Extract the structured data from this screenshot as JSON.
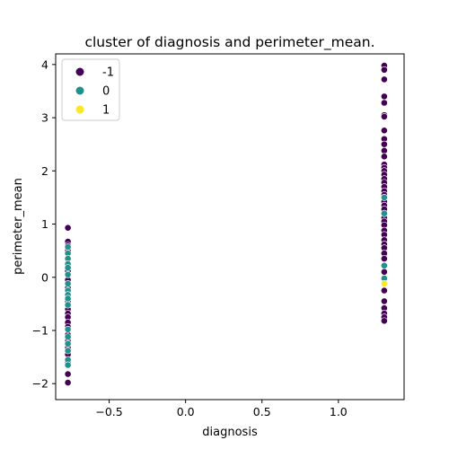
{
  "chart_data": {
    "type": "scatter",
    "title": "cluster of diagnosis and perimeter_mean.",
    "xlabel": "diagnosis",
    "ylabel": "perimeter_mean",
    "xlim": [
      -0.85,
      1.43
    ],
    "ylim": [
      -2.3,
      4.2
    ],
    "xticks": [
      -0.5,
      0.0,
      0.5,
      1.0
    ],
    "xtick_labels": [
      "−0.5",
      "0.0",
      "0.5",
      "1.0"
    ],
    "yticks": [
      -2,
      -1,
      0,
      1,
      2,
      3,
      4
    ],
    "ytick_labels": [
      "−2",
      "−1",
      "0",
      "1",
      "2",
      "3",
      "4"
    ],
    "grid": false,
    "legend_position": "top-left",
    "series": [
      {
        "name": "-1",
        "color": "#440154",
        "points": [
          [
            -0.77,
            0.93
          ],
          [
            -0.77,
            0.67
          ],
          [
            -0.77,
            0.6
          ],
          [
            -0.77,
            0.5
          ],
          [
            -0.77,
            0.12
          ],
          [
            -0.77,
            -0.05
          ],
          [
            -0.77,
            -0.2
          ],
          [
            -0.77,
            -0.45
          ],
          [
            -0.77,
            -0.6
          ],
          [
            -0.77,
            -0.68
          ],
          [
            -0.77,
            -0.75
          ],
          [
            -0.77,
            -0.85
          ],
          [
            -0.77,
            -0.93
          ],
          [
            -0.77,
            -1.08
          ],
          [
            -0.77,
            -1.2
          ],
          [
            -0.77,
            -1.32
          ],
          [
            -0.77,
            -1.45
          ],
          [
            -0.77,
            -1.6
          ],
          [
            -0.77,
            -1.82
          ],
          [
            -0.77,
            -1.98
          ],
          [
            1.3,
            3.98
          ],
          [
            1.3,
            3.9
          ],
          [
            1.3,
            3.72
          ],
          [
            1.3,
            3.4
          ],
          [
            1.3,
            3.28
          ],
          [
            1.3,
            3.05
          ],
          [
            1.3,
            3.02
          ],
          [
            1.3,
            2.76
          ],
          [
            1.3,
            2.6
          ],
          [
            1.3,
            2.5
          ],
          [
            1.3,
            2.38
          ],
          [
            1.3,
            2.27
          ],
          [
            1.3,
            2.12
          ],
          [
            1.3,
            2.06
          ],
          [
            1.3,
            2.0
          ],
          [
            1.3,
            1.93
          ],
          [
            1.3,
            1.85
          ],
          [
            1.3,
            1.78
          ],
          [
            1.3,
            1.7
          ],
          [
            1.3,
            1.62
          ],
          [
            1.3,
            1.55
          ],
          [
            1.3,
            1.42
          ],
          [
            1.3,
            1.35
          ],
          [
            1.3,
            1.28
          ],
          [
            1.3,
            1.12
          ],
          [
            1.3,
            1.05
          ],
          [
            1.3,
            0.98
          ],
          [
            1.3,
            0.88
          ],
          [
            1.3,
            0.8
          ],
          [
            1.3,
            0.7
          ],
          [
            1.3,
            0.62
          ],
          [
            1.3,
            0.55
          ],
          [
            1.3,
            0.45
          ],
          [
            1.3,
            0.35
          ],
          [
            1.3,
            0.1
          ],
          [
            1.3,
            -0.25
          ],
          [
            1.3,
            -0.45
          ],
          [
            1.3,
            -0.58
          ],
          [
            1.3,
            -0.68
          ],
          [
            1.3,
            -0.75
          ],
          [
            1.3,
            -0.82
          ]
        ]
      },
      {
        "name": "0",
        "color": "#21918c",
        "points": [
          [
            -0.77,
            0.57
          ],
          [
            -0.77,
            0.45
          ],
          [
            -0.77,
            0.35
          ],
          [
            -0.77,
            0.25
          ],
          [
            -0.77,
            0.18
          ],
          [
            -0.77,
            0.05
          ],
          [
            -0.77,
            -0.12
          ],
          [
            -0.77,
            -0.25
          ],
          [
            -0.77,
            -0.33
          ],
          [
            -0.77,
            -0.4
          ],
          [
            -0.77,
            -0.52
          ],
          [
            -0.77,
            -0.98
          ],
          [
            -0.77,
            -1.12
          ],
          [
            -0.77,
            -1.25
          ],
          [
            -0.77,
            -1.38
          ],
          [
            -0.77,
            -1.55
          ],
          [
            -0.77,
            -1.65
          ],
          [
            1.3,
            1.5
          ],
          [
            1.3,
            1.2
          ],
          [
            1.3,
            0.22
          ],
          [
            1.3,
            -0.02
          ]
        ]
      },
      {
        "name": "1",
        "color": "#fde725",
        "points": [
          [
            1.3,
            -0.12
          ]
        ]
      }
    ]
  }
}
